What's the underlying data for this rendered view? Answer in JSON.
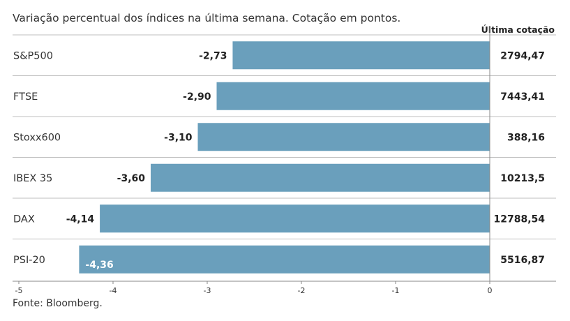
{
  "subtitle": "Variação percentual dos índices na última semana. Cotação em pontos.",
  "source": "Fonte: Bloomberg.",
  "colors": {
    "bar": "#6a9fbc",
    "separator": "#bfbfbf",
    "axis": "#888888"
  },
  "chart_data": {
    "type": "bar",
    "orientation": "horizontal",
    "categories": [
      "S&P500",
      "FTSE",
      "Stoxx600",
      "IBEX 35",
      "DAX",
      "PSI-20"
    ],
    "values": [
      -2.73,
      -2.9,
      -3.1,
      -3.6,
      -4.14,
      -4.36
    ],
    "value_labels": [
      "-2,73",
      "-2,90",
      "-3,10",
      "-3,60",
      "-4,14",
      "-4,36"
    ],
    "xlim": [
      -5,
      0
    ],
    "xticks": [
      -5,
      -4,
      -3,
      -2,
      -1,
      0
    ],
    "xtick_labels": [
      "-5",
      "-4",
      "-3",
      "-2",
      "-1",
      "0"
    ],
    "side_column": {
      "header": "Última cotação",
      "values": [
        "2794,47",
        "7443,41",
        "388,16",
        "10213,5",
        "12788,54",
        "5516,87"
      ]
    }
  }
}
